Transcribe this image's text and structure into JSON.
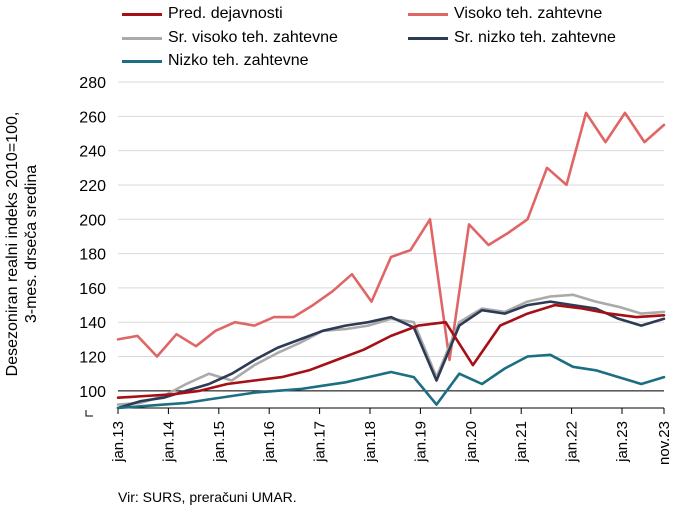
{
  "chart_data": {
    "type": "line",
    "ylabel_line1": "Desezoniran realni indeks 2010=100,",
    "ylabel_line2": "3-mes. drseča sredina",
    "source": "Vir: SURS, preračuni UMAR.",
    "ylim": [
      90,
      280
    ],
    "yticks": [
      100,
      120,
      140,
      160,
      180,
      200,
      220,
      240,
      260,
      280
    ],
    "xticks": [
      "jan.13",
      "jan.14",
      "jan.15",
      "jan.16",
      "jan.17",
      "jan.18",
      "jan.19",
      "jan.20",
      "jan.21",
      "jan.22",
      "jan.23",
      "nov.23"
    ],
    "x_start": "2013-01",
    "x_end": "2023-11",
    "reference_line": 100,
    "grid": true,
    "legend_position": "top",
    "series": [
      {
        "name": "Pred. dejavnosti",
        "color": "#a50f15",
        "values": [
          96,
          97,
          98,
          100,
          104,
          106,
          108,
          112,
          118,
          124,
          132,
          138,
          140,
          115,
          138,
          145,
          150,
          148,
          145,
          143,
          144
        ]
      },
      {
        "name": "Visoko teh. zahtevne",
        "color": "#e06666",
        "values": [
          130,
          132,
          120,
          133,
          126,
          135,
          140,
          138,
          143,
          143,
          150,
          158,
          168,
          152,
          178,
          182,
          200,
          118,
          197,
          185,
          192,
          200,
          230,
          220,
          262,
          245,
          262,
          245,
          255
        ]
      },
      {
        "name": "Sr. visoko teh. zahtevne",
        "color": "#aaaaaa",
        "values": [
          92,
          93,
          97,
          104,
          110,
          106,
          115,
          122,
          128,
          135,
          136,
          138,
          142,
          140,
          108,
          140,
          148,
          146,
          152,
          155,
          156,
          152,
          149,
          145,
          146
        ]
      },
      {
        "name": "Sr. nizko teh. zahtevne",
        "color": "#2e3b55",
        "values": [
          90,
          94,
          96,
          100,
          104,
          110,
          118,
          125,
          130,
          135,
          138,
          140,
          143,
          137,
          106,
          138,
          147,
          145,
          150,
          152,
          150,
          148,
          142,
          138,
          142
        ]
      },
      {
        "name": "Nizko teh. zahtevne",
        "color": "#1c6e83",
        "values": [
          90,
          91,
          92,
          93,
          95,
          97,
          99,
          100,
          101,
          103,
          105,
          108,
          111,
          108,
          92,
          110,
          104,
          113,
          120,
          121,
          114,
          112,
          108,
          104,
          108
        ]
      }
    ]
  }
}
